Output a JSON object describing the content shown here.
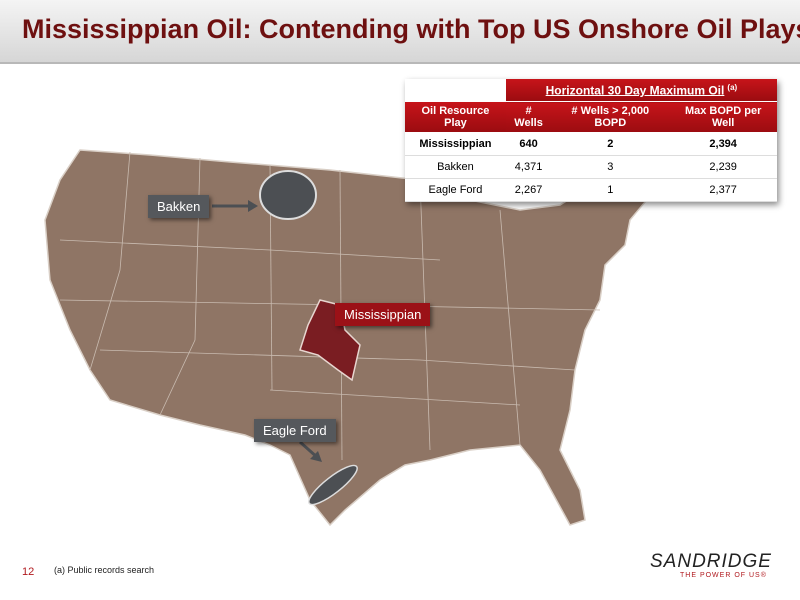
{
  "header": {
    "title": "Mississippian Oil: Contending with Top US Onshore Oil Plays"
  },
  "table": {
    "group_header": "Horizontal 30 Day Maximum Oil",
    "group_note": "(a)",
    "columns": [
      "Oil Resource Play",
      "# Wells",
      "# Wells > 2,000 BOPD",
      "Max BOPD per Well"
    ],
    "rows": [
      [
        "Mississippian",
        "640",
        "2",
        "2,394"
      ],
      [
        "Bakken",
        "4,371",
        "3",
        "2,239"
      ],
      [
        "Eagle Ford",
        "2,267",
        "1",
        "2,377"
      ]
    ]
  },
  "map": {
    "labels": [
      "Bakken",
      "Mississippian",
      "Eagle Ford"
    ]
  },
  "footer": {
    "page_number": "12",
    "footnote": "(a) Public records search",
    "logo": "SANDRIDGE",
    "tagline": "THE POWER OF US®"
  }
}
